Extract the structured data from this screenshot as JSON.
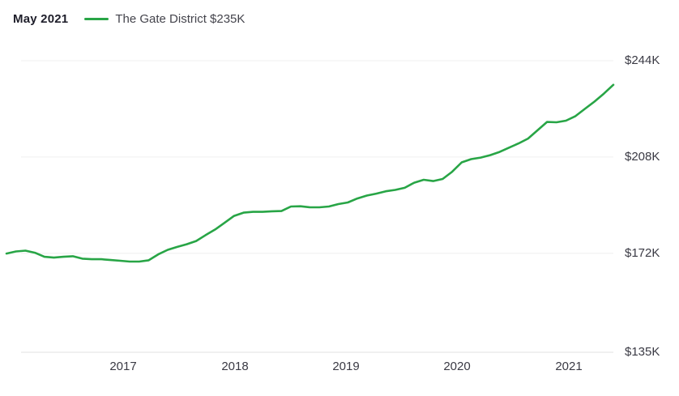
{
  "header": {
    "selected_date": "May 2021",
    "legend": {
      "series_label": "The Gate District $235K",
      "swatch_icon": "line-swatch"
    }
  },
  "colors": {
    "line": "#28a546",
    "grid": "#efefef",
    "axis_line": "#e2e2e2",
    "axis_text": "#3a3a44",
    "heading_text": "#1e1e2a",
    "background": "#ffffff"
  },
  "chart_data": {
    "type": "line",
    "title": "",
    "xlabel": "",
    "ylabel": "",
    "legend_position": "top-left",
    "y_axis_side": "right",
    "grid": "horizontal-only",
    "ylim_k": [
      135,
      244
    ],
    "x_tick_labels": [
      "2017",
      "2018",
      "2019",
      "2020",
      "2021"
    ],
    "y_ticks": [
      {
        "label": "$244K",
        "value_k": 244
      },
      {
        "label": "$208K",
        "value_k": 208
      },
      {
        "label": "$172K",
        "value_k": 172
      },
      {
        "label": "$135K",
        "value_k": 135
      }
    ],
    "selected_point": {
      "date": "May 2021",
      "value_usd_k": 235
    },
    "series": [
      {
        "name": "The Gate District",
        "legend_label": "The Gate District $235K",
        "color": "#28a546",
        "frequency": "monthly",
        "x_start": "2016-01",
        "x_end": "2021-05",
        "values_usd_k": [
          171.9,
          172.7,
          173.0,
          172.2,
          170.7,
          170.4,
          170.7,
          170.9,
          170.0,
          169.8,
          169.8,
          169.5,
          169.2,
          168.9,
          168.9,
          169.4,
          171.6,
          173.3,
          174.4,
          175.4,
          176.6,
          178.8,
          180.9,
          183.4,
          186.0,
          187.2,
          187.5,
          187.5,
          187.7,
          187.8,
          189.5,
          189.6,
          189.2,
          189.2,
          189.5,
          190.4,
          191.0,
          192.5,
          193.6,
          194.3,
          195.2,
          195.7,
          196.5,
          198.4,
          199.5,
          199.0,
          199.8,
          202.5,
          206.0,
          207.2,
          207.8,
          208.7,
          209.9,
          211.5,
          213.1,
          214.9,
          218.0,
          221.1,
          221.0,
          221.6,
          223.3,
          226.0,
          228.7,
          231.7,
          235.0
        ]
      }
    ]
  }
}
